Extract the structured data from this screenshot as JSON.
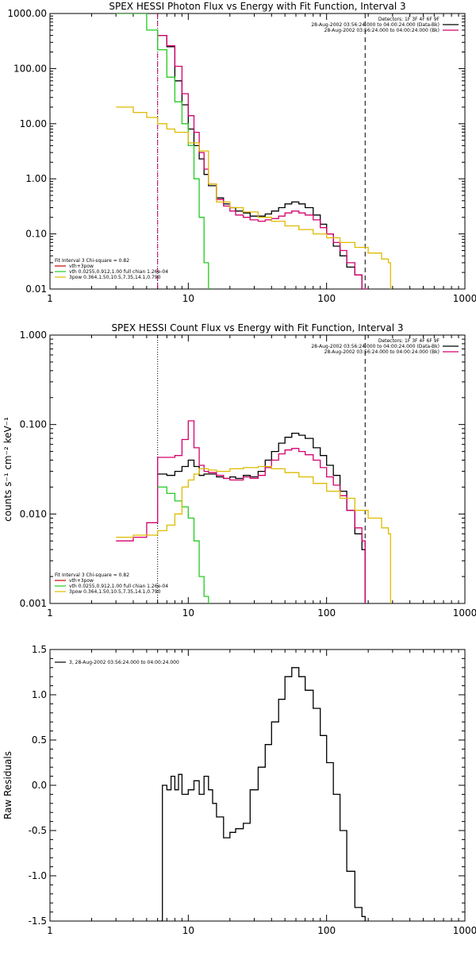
{
  "colors": {
    "data": "#000000",
    "total": "#d4006e",
    "thermal": "#22cc22",
    "powerlaw": "#ddbb00",
    "fit_interval": "#cc0000"
  },
  "chart_data": [
    {
      "type": "line",
      "title": "SPEX HESSI Photon Flux vs Energy with Fit Function, Interval 3",
      "xlabel": "",
      "ylabel": "",
      "xscale": "log",
      "yscale": "log",
      "xlim": [
        1,
        1000
      ],
      "ylim": [
        0.01,
        1000
      ],
      "xticks": [
        "1",
        "10",
        "100",
        "1000"
      ],
      "yticks": [
        "1000.00",
        "100.00",
        "10.00",
        "1.00",
        "0.10",
        "0.01"
      ],
      "vlines": [
        {
          "x": 6,
          "style": "dotted",
          "color": "#000000"
        },
        {
          "x": 6,
          "style": "dashed",
          "color": "#d4006e"
        },
        {
          "x": 190,
          "style": "dashed",
          "color": "#000000"
        }
      ],
      "legend_right": [
        "Detectors: 1F 3F 4F 6F 9F",
        "28-Aug-2002 03:56:24.000 to 04:00:24.000 (Data-Bk)",
        "28-Aug-2002 03:56:24.000 to 04:00:24.000 (Bk)"
      ],
      "legend_left_title": "Fit Interval 3   Chi-square = 0.82",
      "legend_left": [
        {
          "label": "vth+3pow",
          "color": "#cc0000"
        },
        {
          "label": "vth 0.0255,0.912,1.00  full chian 1.26e-04",
          "color": "#22cc22"
        },
        {
          "label": "3pow 0.364,1.50,10.5,7.35,14.1,0.790",
          "color": "#ddbb00"
        }
      ],
      "series": [
        {
          "color": "#000000",
          "x": [
            6,
            7,
            8,
            9,
            10,
            11,
            12,
            13,
            14,
            16,
            18,
            20,
            22,
            25,
            28,
            32,
            36,
            40,
            45,
            50,
            56,
            63,
            70,
            80,
            90,
            100,
            112,
            125,
            140,
            160,
            180,
            200
          ],
          "y": [
            400,
            250,
            60,
            22,
            8,
            4,
            2.3,
            1.2,
            0.75,
            0.45,
            0.35,
            0.3,
            0.26,
            0.24,
            0.21,
            0.21,
            0.23,
            0.26,
            0.3,
            0.35,
            0.38,
            0.35,
            0.3,
            0.22,
            0.15,
            0.1,
            0.06,
            0.04,
            0.025,
            0.018,
            0.01,
            0.01
          ]
        },
        {
          "color": "#d4006e",
          "x": [
            6,
            7,
            8,
            9,
            10,
            11,
            12,
            13,
            14,
            16,
            18,
            20,
            22,
            25,
            28,
            32,
            36,
            40,
            45,
            50,
            56,
            63,
            70,
            80,
            90,
            100,
            112,
            125,
            140,
            160,
            180,
            200
          ],
          "y": [
            400,
            260,
            110,
            35,
            14,
            7,
            3,
            1.5,
            0.8,
            0.42,
            0.32,
            0.26,
            0.22,
            0.2,
            0.18,
            0.17,
            0.18,
            0.19,
            0.21,
            0.24,
            0.26,
            0.24,
            0.22,
            0.18,
            0.13,
            0.1,
            0.07,
            0.05,
            0.03,
            0.018,
            0.01,
            0.01
          ]
        },
        {
          "color": "#22cc22",
          "x": [
            3,
            4,
            5,
            6,
            7,
            8,
            9,
            10,
            11,
            12,
            13,
            14
          ],
          "y": [
            1000,
            1000,
            500,
            220,
            70,
            25,
            10,
            4,
            1,
            0.2,
            0.03,
            0.01
          ]
        },
        {
          "color": "#ddbb00",
          "x": [
            3,
            4,
            5,
            6,
            7,
            8,
            10,
            12,
            14,
            16,
            20,
            25,
            32,
            40,
            50,
            63,
            80,
            100,
            125,
            160,
            200,
            250,
            280,
            290
          ],
          "y": [
            20,
            16,
            13,
            10,
            8,
            7,
            4.5,
            3.2,
            0.8,
            0.38,
            0.3,
            0.25,
            0.2,
            0.17,
            0.14,
            0.12,
            0.1,
            0.085,
            0.07,
            0.057,
            0.045,
            0.035,
            0.03,
            0.01
          ]
        }
      ]
    },
    {
      "type": "line",
      "title": "SPEX HESSI Count Flux vs Energy with Fit Function, Interval 3",
      "xlabel": "",
      "ylabel": "counts s⁻¹ cm⁻² keV⁻¹",
      "xscale": "log",
      "yscale": "log",
      "xlim": [
        1,
        1000
      ],
      "ylim": [
        0.001,
        1
      ],
      "xticks": [
        "1",
        "10",
        "100",
        "1000"
      ],
      "yticks": [
        "1.000",
        "0.100",
        "0.010",
        "0.001"
      ],
      "vlines": [
        {
          "x": 6,
          "style": "dotted",
          "color": "#000000"
        },
        {
          "x": 190,
          "style": "dashed",
          "color": "#000000"
        }
      ],
      "legend_right": [
        "Detectors: 1F 3F 4F 6F 9F",
        "28-Aug-2002 03:56:24.000 to 04:00:24.000 (Data-Bk)",
        "28-Aug-2002 03:56:24.000 to 04:00:24.000 (Bk)"
      ],
      "legend_left_title": "Fit Interval 3   Chi-square = 0.82",
      "legend_left": [
        {
          "label": "vth+3pow",
          "color": "#cc0000"
        },
        {
          "label": "vth 0.0255,0.912,1.00  full chian 1.26e-04",
          "color": "#22cc22"
        },
        {
          "label": "3pow 0.364,1.50,10.5,7.35,14.1,0.790",
          "color": "#ddbb00"
        }
      ],
      "series": [
        {
          "color": "#000000",
          "x": [
            6,
            7,
            8,
            9,
            10,
            11,
            12,
            13,
            14,
            16,
            18,
            20,
            22,
            25,
            28,
            32,
            36,
            40,
            45,
            50,
            56,
            63,
            70,
            80,
            90,
            100,
            112,
            125,
            140,
            160,
            180,
            190
          ],
          "y": [
            0.028,
            0.027,
            0.03,
            0.034,
            0.04,
            0.034,
            0.027,
            0.028,
            0.028,
            0.026,
            0.025,
            0.026,
            0.025,
            0.027,
            0.026,
            0.03,
            0.04,
            0.05,
            0.062,
            0.072,
            0.08,
            0.076,
            0.07,
            0.055,
            0.045,
            0.035,
            0.027,
            0.018,
            0.011,
            0.006,
            0.004,
            0.001
          ]
        },
        {
          "color": "#d4006e",
          "x": [
            3,
            4,
            5,
            6,
            7,
            8,
            9,
            10,
            11,
            12,
            13,
            14,
            16,
            18,
            20,
            22,
            25,
            28,
            32,
            36,
            40,
            45,
            50,
            56,
            63,
            70,
            80,
            90,
            100,
            112,
            125,
            140,
            160,
            180,
            190
          ],
          "y": [
            0.005,
            0.0055,
            0.008,
            0.043,
            0.043,
            0.045,
            0.068,
            0.11,
            0.055,
            0.035,
            0.03,
            0.029,
            0.027,
            0.025,
            0.024,
            0.024,
            0.026,
            0.025,
            0.027,
            0.033,
            0.04,
            0.047,
            0.052,
            0.054,
            0.05,
            0.046,
            0.04,
            0.033,
            0.026,
            0.021,
            0.016,
            0.011,
            0.007,
            0.005,
            0.001
          ]
        },
        {
          "color": "#22cc22",
          "x": [
            6,
            7,
            8,
            9,
            10,
            11,
            12,
            13,
            14
          ],
          "y": [
            0.02,
            0.017,
            0.014,
            0.012,
            0.009,
            0.005,
            0.002,
            0.0012,
            0.001
          ]
        },
        {
          "color": "#ddbb00",
          "x": [
            3,
            4,
            5,
            6,
            7,
            8,
            9,
            10,
            11,
            12,
            14,
            16,
            20,
            25,
            32,
            40,
            50,
            63,
            80,
            100,
            125,
            160,
            200,
            250,
            280,
            290
          ],
          "y": [
            0.0055,
            0.0058,
            0.0058,
            0.0065,
            0.0075,
            0.01,
            0.02,
            0.024,
            0.028,
            0.032,
            0.031,
            0.03,
            0.032,
            0.033,
            0.034,
            0.032,
            0.029,
            0.026,
            0.022,
            0.018,
            0.015,
            0.011,
            0.009,
            0.007,
            0.006,
            0.001
          ]
        }
      ]
    },
    {
      "type": "line",
      "title": "",
      "xlabel": "",
      "ylabel": "Raw Residuals",
      "xscale": "log",
      "yscale": "linear",
      "xlim": [
        1,
        1000
      ],
      "ylim": [
        -1.5,
        1.5
      ],
      "xticks": [
        "1",
        "10",
        "100",
        "1000"
      ],
      "yticks": [
        "1.5",
        "1.0",
        "0.5",
        "0.0",
        "-0.5",
        "-1.0",
        "-1.5"
      ],
      "legend_left": [
        {
          "label": "3, 28-Aug-2002 03:56:24.000 to 04:00:24.000",
          "color": "#000000"
        }
      ],
      "series": [
        {
          "color": "#000000",
          "x": [
            6,
            6.5,
            7,
            7.5,
            8,
            8.5,
            9,
            10,
            11,
            12,
            13,
            14,
            15,
            16,
            18,
            20,
            22,
            25,
            28,
            32,
            36,
            40,
            45,
            50,
            56,
            63,
            70,
            80,
            90,
            100,
            112,
            125,
            140,
            160,
            180,
            190
          ],
          "y": [
            -1.5,
            0.0,
            -0.05,
            0.1,
            -0.05,
            0.12,
            -0.1,
            -0.05,
            0.05,
            -0.1,
            0.1,
            -0.05,
            -0.2,
            -0.35,
            -0.58,
            -0.52,
            -0.48,
            -0.42,
            -0.05,
            0.2,
            0.45,
            0.7,
            0.95,
            1.2,
            1.3,
            1.2,
            1.05,
            0.85,
            0.55,
            0.25,
            -0.1,
            -0.5,
            -0.95,
            -1.35,
            -1.45,
            -1.5
          ]
        }
      ]
    }
  ]
}
